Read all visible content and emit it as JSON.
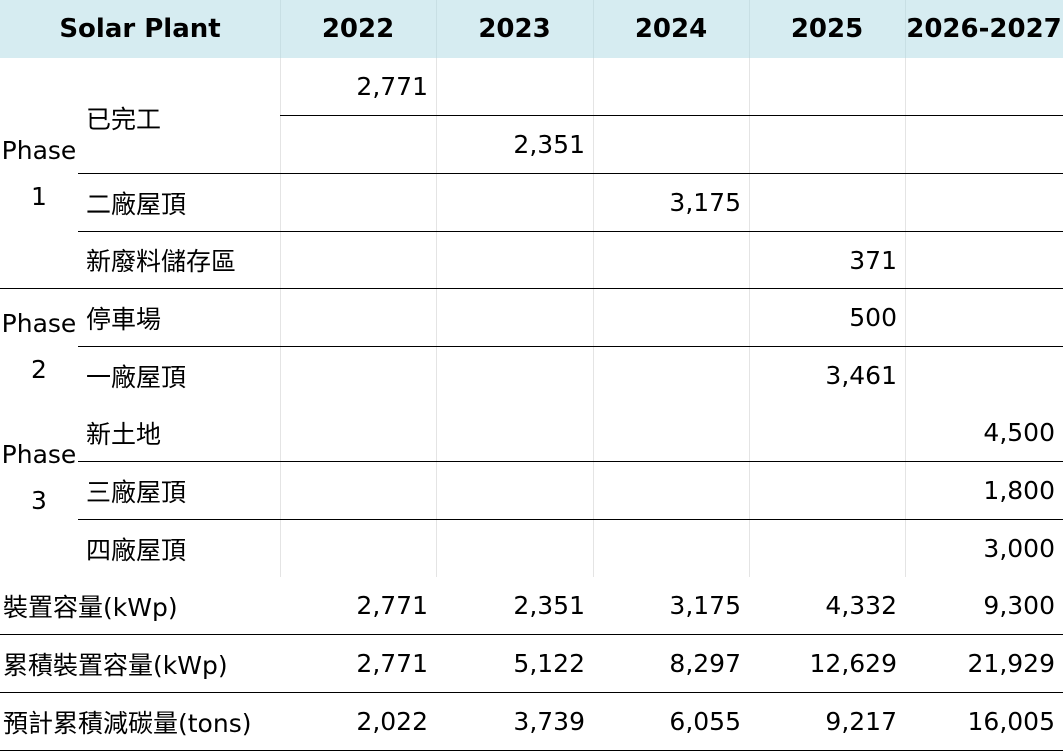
{
  "header": {
    "label": "Solar Plant",
    "years": [
      "2022",
      "2023",
      "2024",
      "2025",
      "2026-2027"
    ]
  },
  "phases": [
    {
      "line1": "Phase",
      "line2": "1"
    },
    {
      "line1": "Phase",
      "line2": "2"
    },
    {
      "line1": "Phase",
      "line2": "3"
    }
  ],
  "projects": [
    {
      "name": "已完工",
      "values": [
        "2,771",
        "",
        "",
        "",
        ""
      ]
    },
    {
      "name": "",
      "values": [
        "",
        "2,351",
        "",
        "",
        ""
      ]
    },
    {
      "name": "二廠屋頂",
      "values": [
        "",
        "",
        "3,175",
        "",
        ""
      ]
    },
    {
      "name": "新廢料儲存區",
      "values": [
        "",
        "",
        "",
        "371",
        ""
      ]
    },
    {
      "name": "停車場",
      "values": [
        "",
        "",
        "",
        "500",
        ""
      ]
    },
    {
      "name": "一廠屋頂",
      "values": [
        "",
        "",
        "",
        "3,461",
        ""
      ]
    },
    {
      "name": "新土地",
      "values": [
        "",
        "",
        "",
        "",
        "4,500"
      ]
    },
    {
      "name": "三廠屋頂",
      "values": [
        "",
        "",
        "",
        "",
        "1,800"
      ]
    },
    {
      "name": "四廠屋頂",
      "values": [
        "",
        "",
        "",
        "",
        "3,000"
      ]
    }
  ],
  "totals": [
    {
      "name": "裝置容量(kWp)",
      "values": [
        "2,771",
        "2,351",
        "3,175",
        "4,332",
        "9,300"
      ]
    },
    {
      "name": "累積裝置容量(kWp)",
      "values": [
        "2,771",
        "5,122",
        "8,297",
        "12,629",
        "21,929"
      ]
    },
    {
      "name": "預計累積減碳量(tons)",
      "values": [
        "2,022",
        "3,739",
        "6,055",
        "9,217",
        "16,005"
      ]
    }
  ]
}
